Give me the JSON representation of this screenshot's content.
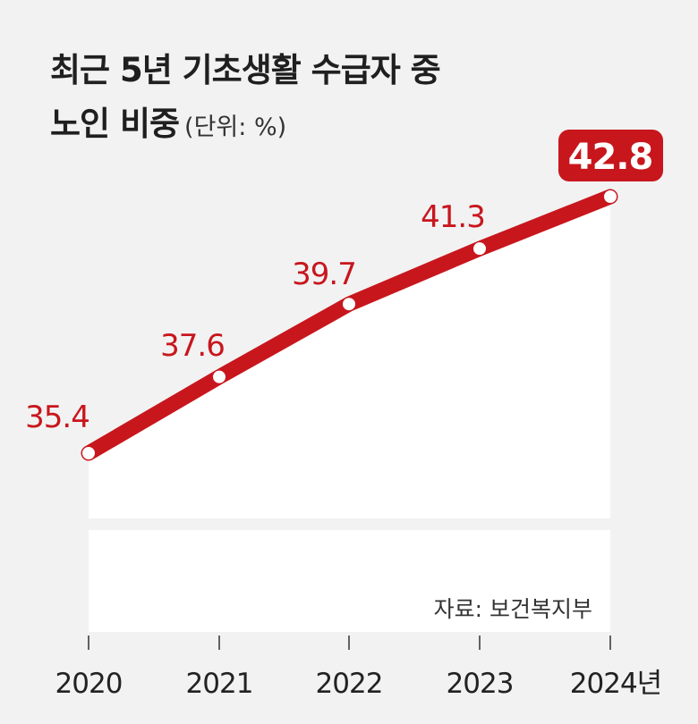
{
  "chart_data": {
    "type": "line",
    "title_line1": "최근 5년 기초생활 수급자 중",
    "title_line2": "노인 비중",
    "unit_note": "(단위: %)",
    "categories": [
      "2020",
      "2021",
      "2022",
      "2023",
      "2024년"
    ],
    "values": [
      35.4,
      37.6,
      39.7,
      41.3,
      42.8
    ],
    "source": "자료: 보건복지부",
    "colors": {
      "line": "#c8161d",
      "point_fill": "#ffffff",
      "highlight_box": "#c8161d",
      "highlight_text": "#ffffff",
      "label": "#c8161d",
      "background": "#f2f2f2",
      "plot_area": "#ffffff"
    },
    "grid": false,
    "highlight_last": true
  }
}
